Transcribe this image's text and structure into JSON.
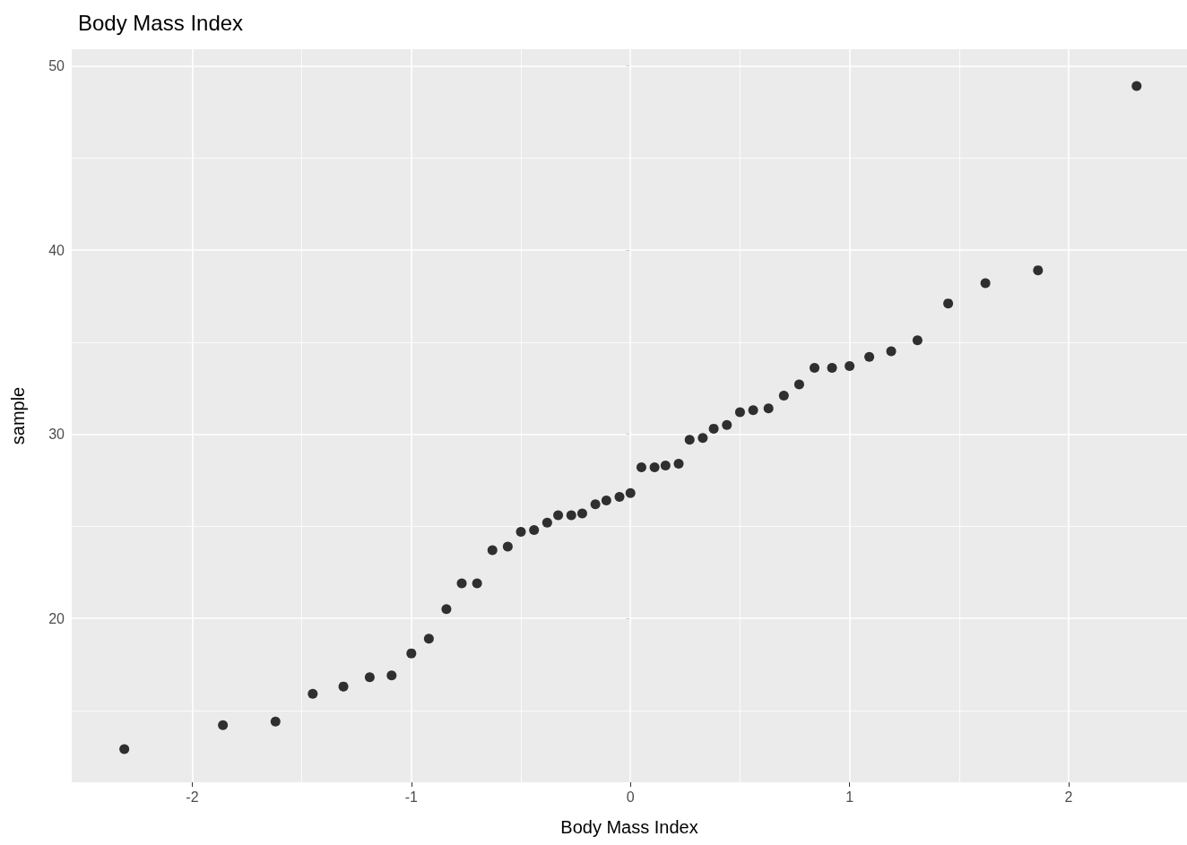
{
  "chart_data": {
    "type": "scatter",
    "title": "Body Mass Index",
    "xlabel": "Body Mass Index",
    "ylabel": "sample",
    "x": [
      -2.31,
      -1.86,
      -1.62,
      -1.45,
      -1.31,
      -1.19,
      -1.09,
      -1.0,
      -0.92,
      -0.84,
      -0.77,
      -0.7,
      -0.63,
      -0.56,
      -0.5,
      -0.44,
      -0.38,
      -0.33,
      -0.27,
      -0.22,
      -0.16,
      -0.11,
      -0.05,
      0,
      0.05,
      0.11,
      0.16,
      0.22,
      0.27,
      0.33,
      0.38,
      0.44,
      0.5,
      0.56,
      0.63,
      0.7,
      0.77,
      0.84,
      0.92,
      1.0,
      1.09,
      1.19,
      1.31,
      1.45,
      1.62,
      1.86,
      2.31
    ],
    "values": [
      12.9,
      14.2,
      14.4,
      15.9,
      16.3,
      16.8,
      16.9,
      18.1,
      18.9,
      20.5,
      21.9,
      21.9,
      23.7,
      23.9,
      24.7,
      24.8,
      25.2,
      25.6,
      25.6,
      25.7,
      26.2,
      26.4,
      26.6,
      26.8,
      28.2,
      28.2,
      28.3,
      28.4,
      29.7,
      29.8,
      30.3,
      30.5,
      31.2,
      31.3,
      31.4,
      32.1,
      32.7,
      33.6,
      33.6,
      33.7,
      34.2,
      34.5,
      35.1,
      37.1,
      38.2,
      38.9,
      48.9
    ],
    "color": "#000000",
    "marker": "circle",
    "grid": true,
    "xlim": [
      -2.55,
      2.54
    ],
    "ylim": [
      11.1,
      50.9
    ],
    "xticks": [
      -2,
      {
        "value": -1.5,
        "label": null
      },
      -1,
      {
        "value": -0.5,
        "label": null
      },
      0,
      {
        "value": 0.5,
        "label": null
      },
      1,
      {
        "value": 1.5,
        "label": null
      },
      2
    ],
    "yticks": [
      {
        "value": 15,
        "label": null
      },
      20,
      {
        "value": 25,
        "label": null
      },
      30,
      {
        "value": 35,
        "label": null
      },
      40,
      {
        "value": 45,
        "label": null
      },
      50
    ]
  }
}
